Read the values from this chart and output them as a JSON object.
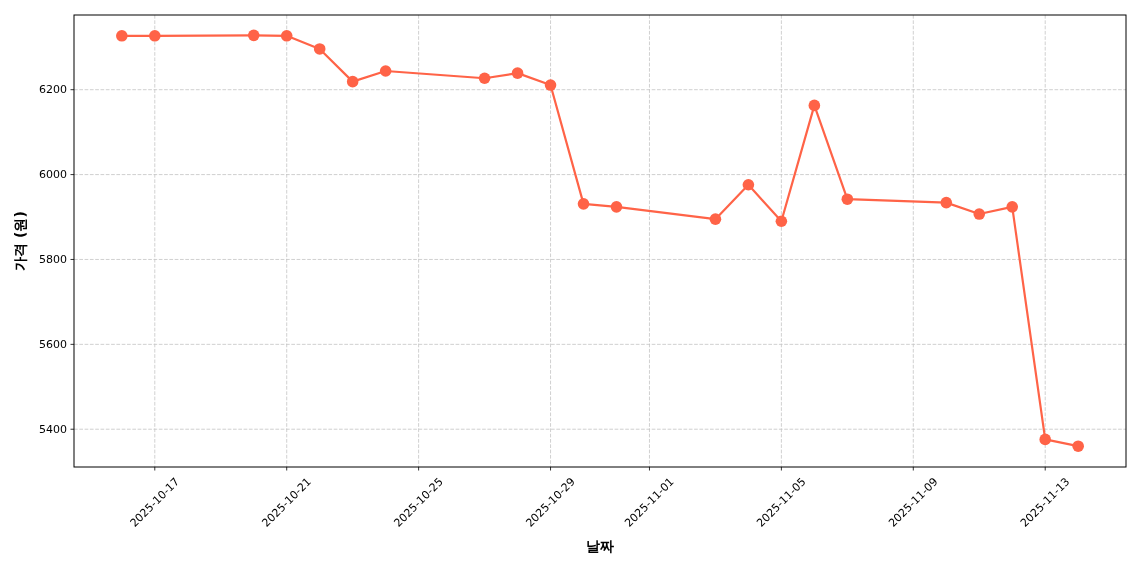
{
  "chart_data": {
    "type": "line",
    "xlabel": "날짜",
    "ylabel": "가격 (원)",
    "x": [
      "2025-10-16",
      "2025-10-17",
      "2025-10-20",
      "2025-10-21",
      "2025-10-22",
      "2025-10-23",
      "2025-10-24",
      "2025-10-27",
      "2025-10-28",
      "2025-10-29",
      "2025-10-30",
      "2025-10-31",
      "2025-11-03",
      "2025-11-04",
      "2025-11-05",
      "2025-11-06",
      "2025-11-07",
      "2025-11-10",
      "2025-11-11",
      "2025-11-12",
      "2025-11-13",
      "2025-11-14"
    ],
    "values": [
      6327,
      6327,
      6328,
      6327,
      6296,
      6219,
      6244,
      6227,
      6239,
      6211,
      5931,
      5924,
      5895,
      5976,
      5890,
      6163,
      5942,
      5934,
      5907,
      5924,
      5376,
      5360
    ],
    "color": "#ff6347",
    "xlim": [
      "2025-10-14T13:12",
      "2025-11-15T10:48"
    ],
    "ylim": [
      5311,
      6376
    ],
    "xticks": [
      "2025-10-17",
      "2025-10-21",
      "2025-10-25",
      "2025-10-29",
      "2025-11-01",
      "2025-11-05",
      "2025-11-09",
      "2025-11-13"
    ],
    "yticks": [
      5400,
      5600,
      5800,
      6000,
      6200
    ],
    "grid": true,
    "marker": "circle",
    "line_style": "solid"
  }
}
